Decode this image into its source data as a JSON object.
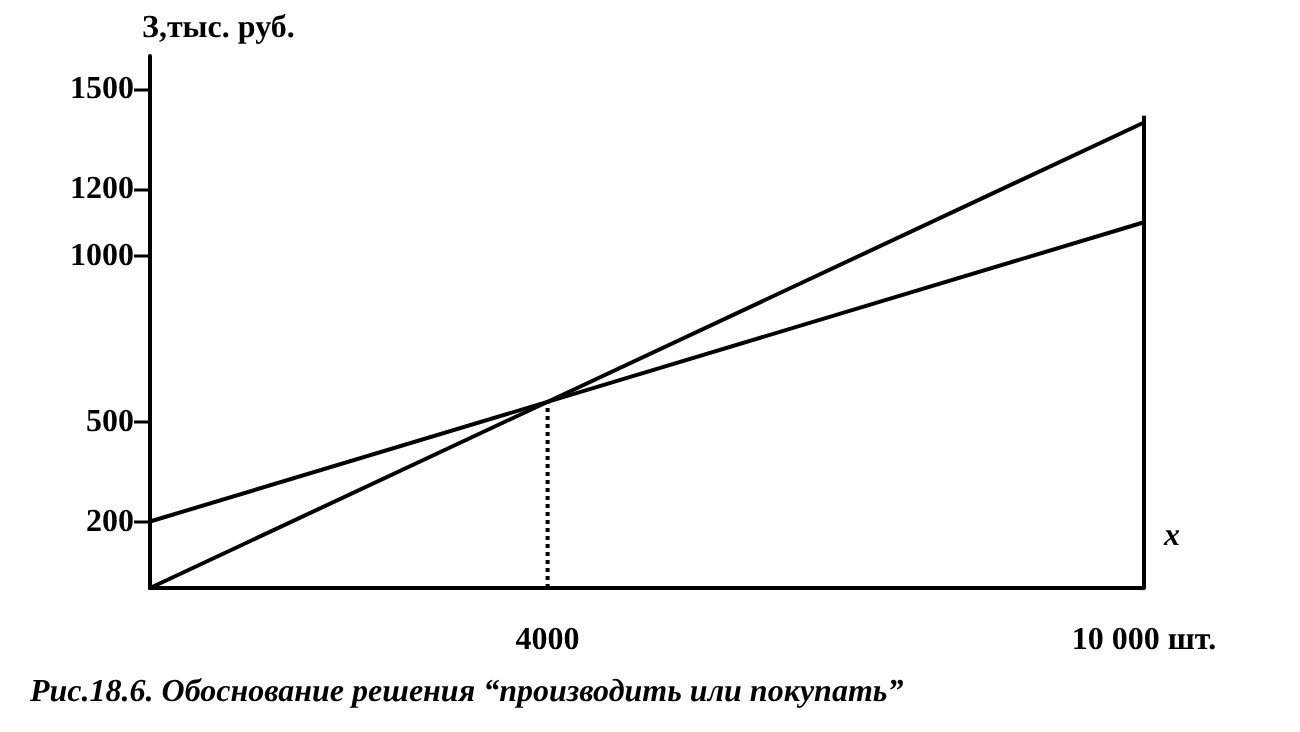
{
  "chart_data": {
    "type": "line",
    "ylabel": "З,тыс. руб.",
    "xlabel": "x",
    "annotations": [
      "Рис.18.6. Обоснование решения “производить или покупать”"
    ],
    "x": [
      0,
      10000
    ],
    "series": [
      {
        "color": "#000000",
        "values": [
          0,
          1400
        ]
      },
      {
        "color": "#000000",
        "values": [
          200,
          1100
        ]
      }
    ],
    "xlim": [
      0,
      10000
    ],
    "xticks": [
      4000,
      {
        "value": 10000,
        "label": "10 000 шт."
      }
    ],
    "ylim": [
      0,
      1600
    ],
    "yticks": [
      200,
      500,
      1000,
      1200,
      1500
    ],
    "ref_lines": [
      {
        "axis": "x",
        "value": 4000,
        "line_style": "dotted"
      },
      {
        "axis": "x",
        "value": 10000,
        "line_style": "solid"
      }
    ],
    "grid": false,
    "marker": "none",
    "line_style": "solid"
  }
}
